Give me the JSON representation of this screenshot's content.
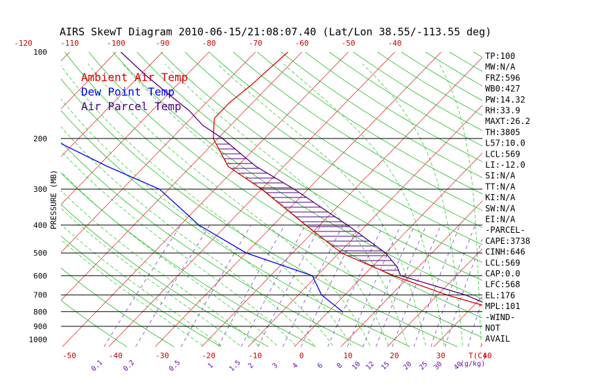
{
  "title": "AIRS SkewT Diagram 2010-06-15/21:08:07.40 (Lat/Lon 38.55/-113.55 deg)",
  "chart_data": {
    "type": "skewt",
    "ylabel": "PRESSURE (MB)",
    "xlabel": "T(C)",
    "mixing_ratio_label": "(g/kg)",
    "pressure_ticks": [
      100,
      200,
      300,
      400,
      500,
      600,
      700,
      800,
      900,
      1000
    ],
    "top_temp_ticks": [
      -120,
      -110,
      -100,
      -90,
      -80,
      -70,
      -60,
      -50,
      -40
    ],
    "bottom_temp_ticks": [
      -50,
      -40,
      -30,
      -20,
      -10,
      0,
      10,
      20,
      30,
      40
    ],
    "mixing_ratio_ticks": [
      "0.1",
      "0.2",
      "0.5",
      "1",
      "1.5",
      "2",
      "3",
      "4",
      "6",
      "8",
      "10",
      "12",
      "15",
      "20",
      "25",
      "30",
      "40"
    ],
    "legend": [
      {
        "label": "Ambient Air Temp",
        "color": "#dd0000"
      },
      {
        "label": "Dew Point Temp",
        "color": "#0000ee"
      },
      {
        "label": "Air Parcel Temp",
        "color": "#4b0082"
      }
    ],
    "series": [
      {
        "name": "Ambient Air Temp",
        "color": "#dd0000",
        "points": [
          [
            800,
            38
          ],
          [
            700,
            22
          ],
          [
            600,
            6.5
          ],
          [
            500,
            -9.5
          ],
          [
            400,
            -23
          ],
          [
            300,
            -40
          ],
          [
            250,
            -52
          ],
          [
            200,
            -61
          ],
          [
            170,
            -65
          ],
          [
            150,
            -65
          ],
          [
            130,
            -64
          ],
          [
            100,
            -63
          ]
        ]
      },
      {
        "name": "Dew Point Temp",
        "color": "#0000ee",
        "points": [
          [
            800,
            3
          ],
          [
            700,
            -5
          ],
          [
            600,
            -11
          ],
          [
            500,
            -30
          ],
          [
            400,
            -46
          ],
          [
            300,
            -62
          ],
          [
            250,
            -78
          ],
          [
            200,
            -96
          ],
          [
            170,
            -101
          ],
          [
            150,
            -106
          ],
          [
            130,
            -111
          ],
          [
            100,
            -117
          ]
        ]
      },
      {
        "name": "Air Parcel Temp",
        "color": "#4b0082",
        "points": [
          [
            800,
            38
          ],
          [
            700,
            26
          ],
          [
            600,
            8
          ],
          [
            560,
            5.5
          ],
          [
            500,
            0
          ],
          [
            400,
            -14
          ],
          [
            300,
            -33
          ],
          [
            250,
            -46
          ],
          [
            200,
            -59
          ],
          [
            180,
            -66
          ],
          [
            160,
            -72
          ],
          [
            140,
            -80
          ],
          [
            120,
            -89
          ],
          [
            100,
            -99
          ]
        ]
      }
    ],
    "stats": [
      "TP:100",
      "MW:N/A",
      "FRZ:596",
      "WB0:427",
      "PW:14.32",
      "RH:33.9",
      "MAXT:26.2",
      "TH:3805",
      "L57:10.0",
      "LCL:569",
      "LI:-12.0",
      "SI:N/A",
      "TT:N/A",
      "KI:N/A",
      "SW:N/A",
      "EI:N/A",
      "-PARCEL-",
      "CAPE:3738",
      "CINH:646",
      "LCL:569",
      "CAP:0.0",
      "LFC:568",
      "EL:176",
      "MPL:101",
      "-WIND-",
      "NOT",
      "AVAIL"
    ]
  }
}
